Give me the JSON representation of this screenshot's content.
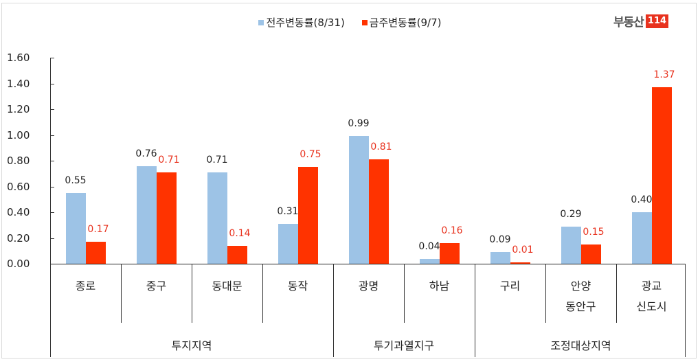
{
  "legend": {
    "prev_label": "전주변동률(8/31)",
    "curr_label": "금주변동률(9/7)",
    "prev_color": "#9dc3e6",
    "curr_color": "#ff3300"
  },
  "logo": {
    "text": "부동산",
    "number": "114"
  },
  "y_axis": {
    "ticks": [
      "1.60",
      "1.40",
      "1.20",
      "1.00",
      "0.80",
      "0.60",
      "0.40",
      "0.20",
      "0.00"
    ]
  },
  "categories": [
    {
      "line1": "종로",
      "line2": ""
    },
    {
      "line1": "중구",
      "line2": ""
    },
    {
      "line1": "동대문",
      "line2": ""
    },
    {
      "line1": "동작",
      "line2": ""
    },
    {
      "line1": "광명",
      "line2": ""
    },
    {
      "line1": "하남",
      "line2": ""
    },
    {
      "line1": "구리",
      "line2": ""
    },
    {
      "line1": "안양",
      "line2": "동안구"
    },
    {
      "line1": "광교",
      "line2": "신도시"
    }
  ],
  "groups": [
    {
      "label": "투지지역",
      "start": 0,
      "end": 4
    },
    {
      "label": "투기과열지구",
      "start": 4,
      "end": 6
    },
    {
      "label": "조정대상지역",
      "start": 6,
      "end": 9
    }
  ],
  "value_labels": {
    "prev": [
      "0.55",
      "0.76",
      "0.71",
      "0.31",
      "0.99",
      "0.04",
      "0.09",
      "0.29",
      "0.40"
    ],
    "curr": [
      "0.17",
      "0.71",
      "0.14",
      "0.75",
      "0.81",
      "0.16",
      "0.01",
      "0.15",
      "1.37"
    ]
  },
  "chart_data": {
    "type": "bar",
    "title": "",
    "xlabel": "",
    "ylabel": "",
    "categories": [
      "종로",
      "중구",
      "동대문",
      "동작",
      "광명",
      "하남",
      "구리",
      "안양 동안구",
      "광교 신도시"
    ],
    "category_groups": [
      {
        "name": "투지지역",
        "members": [
          "종로",
          "중구",
          "동대문",
          "동작"
        ]
      },
      {
        "name": "투기과열지구",
        "members": [
          "광명",
          "하남"
        ]
      },
      {
        "name": "조정대상지역",
        "members": [
          "구리",
          "안양 동안구",
          "광교 신도시"
        ]
      }
    ],
    "series": [
      {
        "name": "전주변동률(8/31)",
        "color": "#9dc3e6",
        "values": [
          0.55,
          0.76,
          0.71,
          0.31,
          0.99,
          0.04,
          0.09,
          0.29,
          0.4
        ]
      },
      {
        "name": "금주변동률(9/7)",
        "color": "#ff3300",
        "values": [
          0.17,
          0.71,
          0.14,
          0.75,
          0.81,
          0.16,
          0.01,
          0.15,
          1.37
        ]
      }
    ],
    "ylim": [
      0,
      1.6
    ],
    "yticks": [
      0,
      0.2,
      0.4,
      0.6,
      0.8,
      1.0,
      1.2,
      1.4,
      1.6
    ],
    "grid": false,
    "legend_position": "top"
  }
}
